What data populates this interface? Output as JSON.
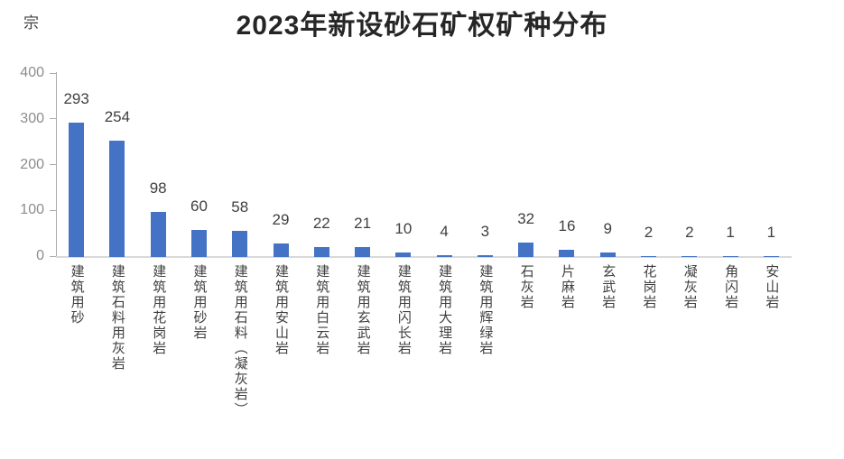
{
  "page": {
    "background": "#ffffff"
  },
  "chart_data": {
    "type": "bar",
    "title": "2023年新设砂石矿权矿种分布",
    "unit_label": "宗",
    "xlabel": "",
    "ylabel": "宗",
    "categories": [
      "建筑用砂",
      "建筑石料用灰岩",
      "建筑用花岗岩",
      "建筑用砂岩",
      "建筑用石料（凝灰岩）",
      "建筑用安山岩",
      "建筑用白云岩",
      "建筑用玄武岩",
      "建筑用闪长岩",
      "建筑用大理岩",
      "建筑用辉绿岩",
      "石灰岩",
      "片麻岩",
      "玄武岩",
      "花岗岩",
      "凝灰岩",
      "角闪岩",
      "安山岩"
    ],
    "values": [
      293,
      254,
      98,
      60,
      58,
      29,
      22,
      21,
      10,
      4,
      3,
      32,
      16,
      9,
      2,
      2,
      1,
      1
    ],
    "ylim": [
      0,
      400
    ],
    "yticks": [
      0,
      100,
      200,
      300,
      400
    ],
    "grid": false,
    "legend": "none",
    "data_labels_shown": true,
    "colors": {
      "bar": "#4472C4",
      "title": "#262626",
      "data_label": "#404040",
      "tick_label": "#8C8C8C",
      "axis_line": "#ABABAB",
      "baseline": "#D9D9D9",
      "category_label": "#404040"
    }
  }
}
